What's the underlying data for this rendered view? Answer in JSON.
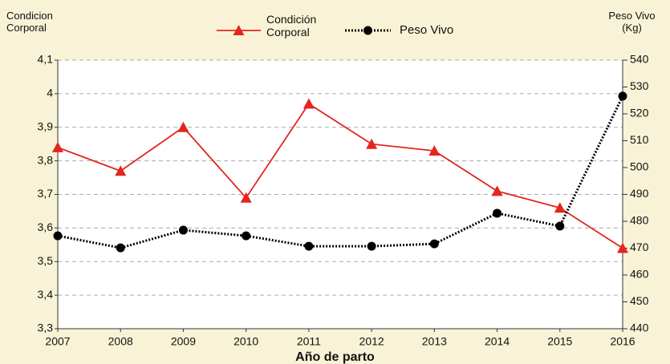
{
  "chart_data": {
    "type": "line",
    "y_label": "Condicion Corporal",
    "y2_label": "Peso Vivo (Kg)",
    "x_label": "Año de parto",
    "categories": [
      "2007",
      "2008",
      "2009",
      "2010",
      "2011",
      "2012",
      "2013",
      "2014",
      "2015",
      "2016"
    ],
    "series": [
      {
        "name": "Condición Corporal",
        "color": "#e3261f",
        "marker": "triangle",
        "line_style": "solid",
        "values": [
          3.84,
          3.77,
          3.9,
          3.69,
          3.97,
          3.85,
          3.83,
          3.71,
          3.66,
          3.54
        ]
      },
      {
        "name": "Peso Vivo",
        "color": "#000000",
        "marker": "circle",
        "line_style": "dotted",
        "axis": "y2",
        "values": [
          474.6,
          470.1,
          476.7,
          474.6,
          470.7,
          470.7,
          471.6,
          483,
          478.2,
          526.6
        ]
      }
    ],
    "ylim": [
      3.3,
      4.1
    ],
    "yticks": [
      {
        "value": 3.3,
        "label": "3,3"
      },
      {
        "value": 3.4,
        "label": "3,4"
      },
      {
        "value": 3.5,
        "label": "3,5"
      },
      {
        "value": 3.6,
        "label": "3,6"
      },
      {
        "value": 3.7,
        "label": "3,7"
      },
      {
        "value": 3.8,
        "label": "3,8"
      },
      {
        "value": 3.9,
        "label": "3,9"
      },
      4,
      {
        "value": 4.1,
        "label": "4,1"
      }
    ],
    "y2lim": [
      440,
      540
    ],
    "y2ticks": [
      440,
      450,
      460,
      470,
      480,
      490,
      500,
      510,
      520,
      530,
      540
    ],
    "grid": true,
    "legend": "top"
  }
}
